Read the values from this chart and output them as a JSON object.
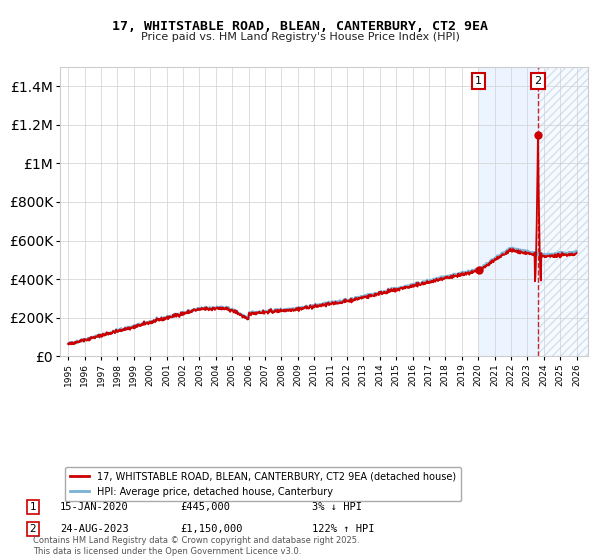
{
  "title": "17, WHITSTABLE ROAD, BLEAN, CANTERBURY, CT2 9EA",
  "subtitle": "Price paid vs. HM Land Registry's House Price Index (HPI)",
  "legend_line1": "17, WHITSTABLE ROAD, BLEAN, CANTERBURY, CT2 9EA (detached house)",
  "legend_line2": "HPI: Average price, detached house, Canterbury",
  "annotation1_date": "15-JAN-2020",
  "annotation1_price": "£445,000",
  "annotation1_pct": "3% ↓ HPI",
  "annotation2_date": "24-AUG-2023",
  "annotation2_price": "£1,150,000",
  "annotation2_pct": "122% ↑ HPI",
  "footnote": "Contains HM Land Registry data © Crown copyright and database right 2025.\nThis data is licensed under the Open Government Licence v3.0.",
  "house_color": "#cc0000",
  "hpi_color": "#7ab0d4",
  "marker_color": "#cc0000",
  "dashed_line_color": "#cc0000",
  "highlight_bg": "#ddeeff",
  "ylim": [
    0,
    1500000
  ],
  "yticks": [
    0,
    200000,
    400000,
    600000,
    800000,
    1000000,
    1200000,
    1400000
  ],
  "xstart_year": 1995,
  "xend_year": 2026,
  "sale1_year": 2020.04,
  "sale2_year": 2023.65,
  "sale1_value": 445000,
  "sale2_value": 1150000
}
